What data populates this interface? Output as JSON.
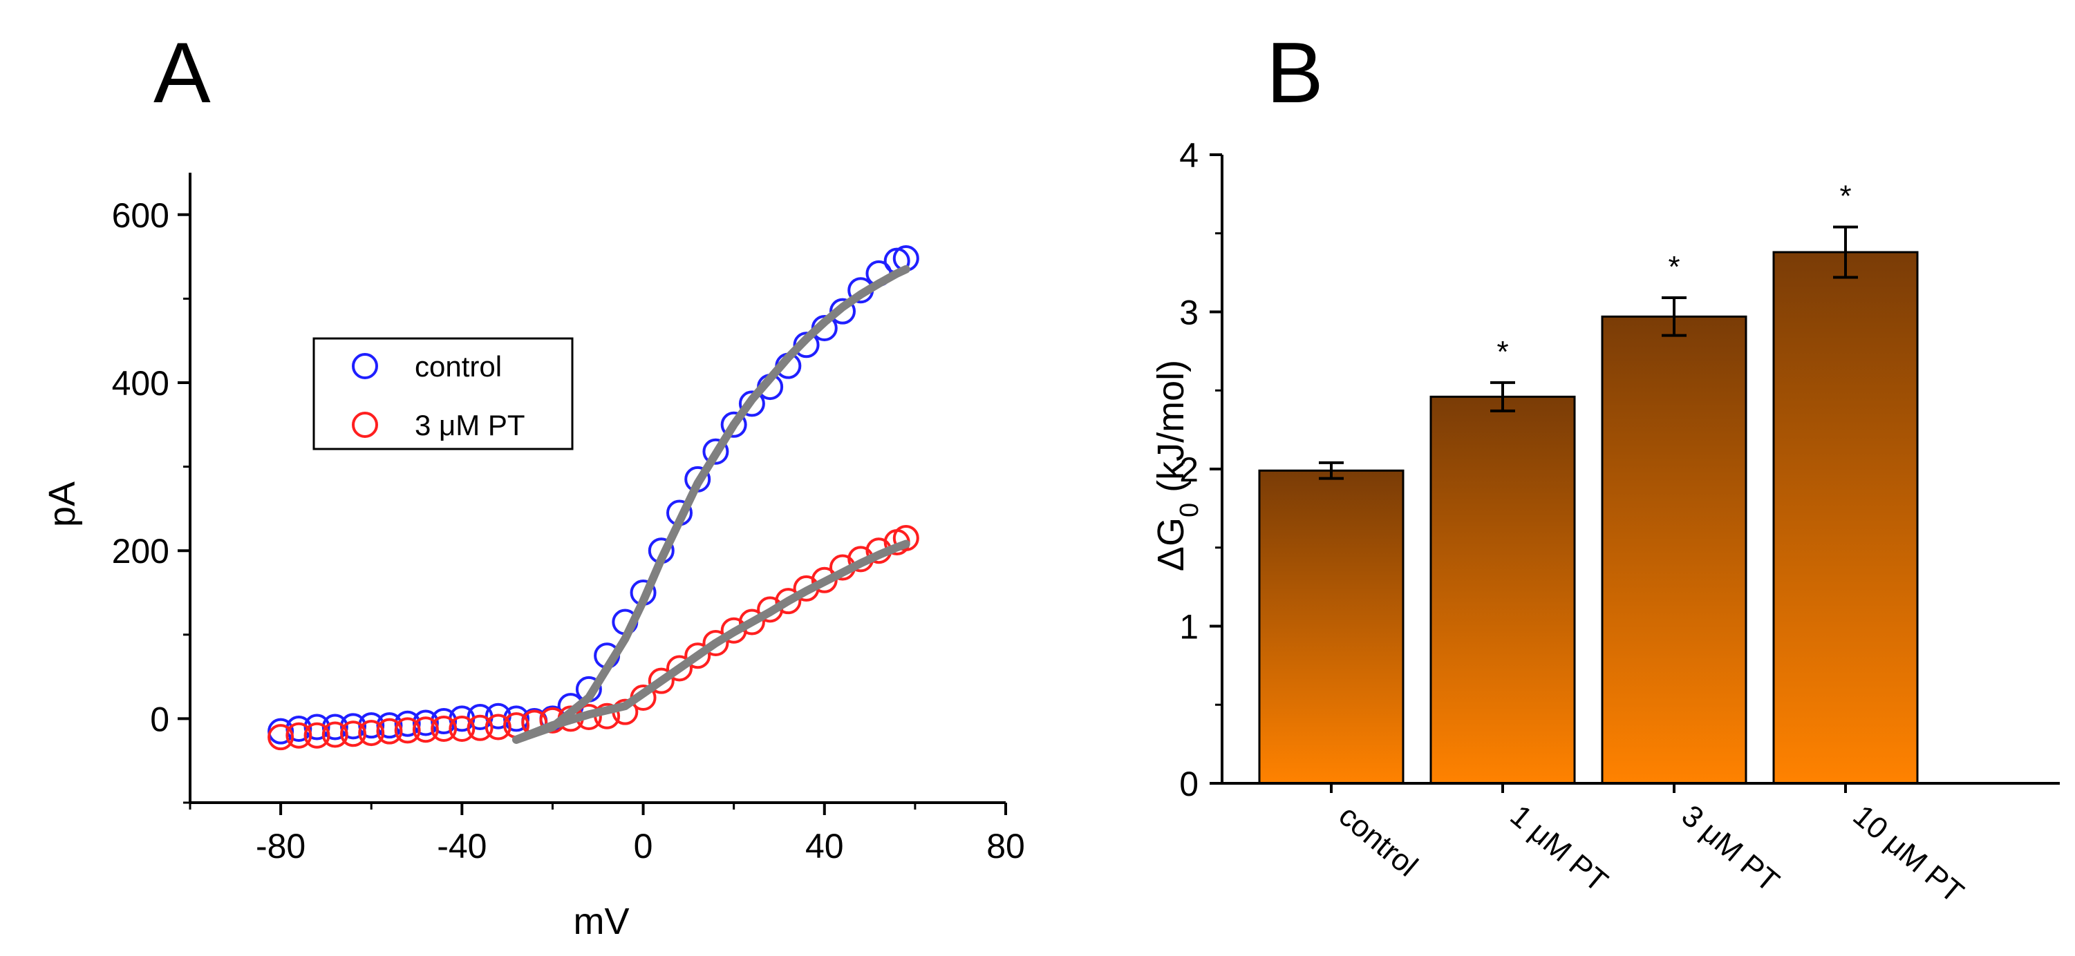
{
  "chart_data": [
    {
      "panel": "A",
      "type": "scatter",
      "xlabel": "mV",
      "ylabel": "pA",
      "xlim": [
        -100,
        80
      ],
      "ylim": [
        -100,
        650
      ],
      "xticks": [
        -80,
        -40,
        0,
        40,
        80
      ],
      "yticks": [
        0,
        200,
        400,
        600
      ],
      "legend_position": "upper-left-center",
      "series": [
        {
          "name": "control",
          "marker": "open-circle",
          "color": "#1f1fff",
          "x": [
            -80,
            -76,
            -72,
            -68,
            -64,
            -60,
            -56,
            -52,
            -48,
            -44,
            -40,
            -36,
            -32,
            -28,
            -24,
            -20,
            -16,
            -12,
            -8,
            -4,
            0,
            4,
            8,
            12,
            16,
            20,
            24,
            28,
            32,
            36,
            40,
            44,
            48,
            52,
            56,
            58
          ],
          "y": [
            -15,
            -12,
            -10,
            -10,
            -9,
            -8,
            -8,
            -6,
            -5,
            -3,
            0,
            2,
            3,
            0,
            -3,
            0,
            15,
            35,
            75,
            115,
            150,
            200,
            245,
            285,
            318,
            350,
            375,
            395,
            420,
            445,
            465,
            485,
            510,
            530,
            545,
            548
          ]
        },
        {
          "name": "3 μM PT",
          "marker": "open-circle",
          "color": "#ff1f1f",
          "x": [
            -80,
            -76,
            -72,
            -68,
            -64,
            -60,
            -56,
            -52,
            -48,
            -44,
            -40,
            -36,
            -32,
            -28,
            -24,
            -20,
            -16,
            -12,
            -8,
            -4,
            0,
            4,
            8,
            12,
            16,
            20,
            24,
            28,
            32,
            36,
            40,
            44,
            48,
            52,
            56,
            58
          ],
          "y": [
            -22,
            -20,
            -20,
            -19,
            -18,
            -17,
            -15,
            -14,
            -13,
            -12,
            -12,
            -11,
            -10,
            -8,
            -5,
            -2,
            0,
            2,
            3,
            8,
            25,
            45,
            60,
            75,
            90,
            105,
            115,
            130,
            140,
            155,
            165,
            180,
            190,
            200,
            210,
            215
          ]
        },
        {
          "name": "control fit",
          "marker": "line",
          "color": "#808080",
          "x": [
            -28,
            -20,
            -12,
            -4,
            0,
            4,
            8,
            12,
            16,
            20,
            24,
            28,
            32,
            36,
            40,
            44,
            48,
            52,
            56,
            58
          ],
          "y": [
            -25,
            -10,
            25,
            95,
            140,
            190,
            235,
            280,
            315,
            350,
            380,
            405,
            430,
            452,
            472,
            490,
            505,
            518,
            530,
            535
          ]
        },
        {
          "name": "3 μM PT fit",
          "marker": "line",
          "color": "#808080",
          "x": [
            -28,
            -20,
            -12,
            -4,
            0,
            4,
            8,
            12,
            16,
            20,
            24,
            28,
            32,
            36,
            40,
            44,
            48,
            52,
            56,
            58
          ],
          "y": [
            -25,
            -8,
            5,
            15,
            30,
            45,
            60,
            75,
            90,
            103,
            115,
            127,
            140,
            152,
            163,
            174,
            185,
            195,
            204,
            208
          ]
        }
      ]
    },
    {
      "panel": "B",
      "type": "bar",
      "ylabel": "ΔG",
      "ylabel_subscript": "0",
      "ylabel_units": " (kJ/mol)",
      "ylim": [
        0,
        4
      ],
      "yticks": [
        0,
        1,
        2,
        3,
        4
      ],
      "categories": [
        "control",
        "1 μM PT",
        "3 μM PT",
        "10 μM PT"
      ],
      "values": [
        1.99,
        2.46,
        2.97,
        3.38
      ],
      "errors": [
        0.05,
        0.09,
        0.12,
        0.16
      ],
      "significance": [
        "",
        "*",
        "*",
        "*"
      ],
      "bar_color_top": "#7a3c06",
      "bar_color_bottom": "#ff8200"
    }
  ]
}
